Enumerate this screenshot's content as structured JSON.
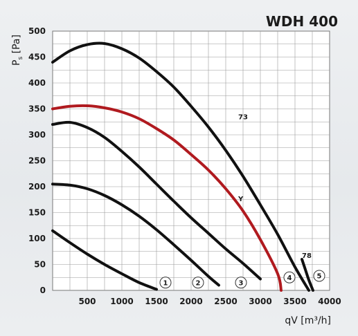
{
  "chart_data": {
    "type": "line",
    "title": "WDH 400",
    "xlabel": "qV [m³/h]",
    "ylabel": "P_s [Pa]",
    "xlim": [
      0,
      4000
    ],
    "ylim": [
      0,
      500
    ],
    "xticks": [
      500,
      1000,
      1500,
      2000,
      2500,
      3000,
      3500,
      4000
    ],
    "yticks": [
      0,
      50,
      100,
      150,
      200,
      250,
      300,
      350,
      400,
      450,
      500
    ],
    "grid": true,
    "series": [
      {
        "name": "1",
        "color": "#111111",
        "x": [
          0,
          250,
          500,
          750,
          1000,
          1250,
          1500
        ],
        "y": [
          115,
          92,
          70,
          50,
          32,
          15,
          2
        ]
      },
      {
        "name": "2",
        "color": "#111111",
        "x": [
          0,
          250,
          500,
          750,
          1000,
          1250,
          1500,
          1750,
          2000,
          2250,
          2400
        ],
        "y": [
          205,
          203,
          196,
          183,
          165,
          143,
          117,
          88,
          58,
          27,
          10
        ]
      },
      {
        "name": "3",
        "color": "#111111",
        "x": [
          0,
          250,
          500,
          750,
          1000,
          1250,
          1500,
          1750,
          2000,
          2250,
          2500,
          2750,
          3000
        ],
        "y": [
          320,
          324,
          314,
          295,
          268,
          238,
          205,
          172,
          140,
          110,
          80,
          52,
          22
        ]
      },
      {
        "name": "Y",
        "color": "#b01a1f",
        "x": [
          0,
          250,
          500,
          750,
          1000,
          1250,
          1500,
          1750,
          2000,
          2250,
          2500,
          2750,
          3000,
          3250,
          3300
        ],
        "y": [
          350,
          355,
          356,
          352,
          344,
          331,
          312,
          290,
          262,
          232,
          196,
          153,
          98,
          32,
          0
        ]
      },
      {
        "name": "73",
        "color": "#111111",
        "x": [
          0,
          250,
          500,
          750,
          1000,
          1250,
          1500,
          1750,
          2000,
          2250,
          2500,
          2750,
          3000,
          3250,
          3500,
          3700
        ],
        "y": [
          440,
          462,
          474,
          476,
          466,
          448,
          422,
          392,
          355,
          315,
          270,
          220,
          165,
          108,
          45,
          0
        ]
      },
      {
        "name": "78",
        "color": "#111111",
        "x": [
          3600,
          3650,
          3700,
          3760
        ],
        "y": [
          60,
          40,
          20,
          0
        ]
      }
    ],
    "annotations": [
      {
        "text": "73",
        "x": 2680,
        "y": 330
      },
      {
        "text": "Y",
        "x": 2680,
        "y": 172
      },
      {
        "text": "78",
        "x": 3600,
        "y": 63
      },
      {
        "text": "1",
        "x": 1630,
        "y": 15,
        "style": "circle"
      },
      {
        "text": "2",
        "x": 2100,
        "y": 15,
        "style": "circle"
      },
      {
        "text": "3",
        "x": 2720,
        "y": 15,
        "style": "circle"
      },
      {
        "text": "4",
        "x": 3420,
        "y": 25,
        "style": "circle"
      },
      {
        "text": "5",
        "x": 3850,
        "y": 28,
        "style": "circle"
      }
    ]
  }
}
